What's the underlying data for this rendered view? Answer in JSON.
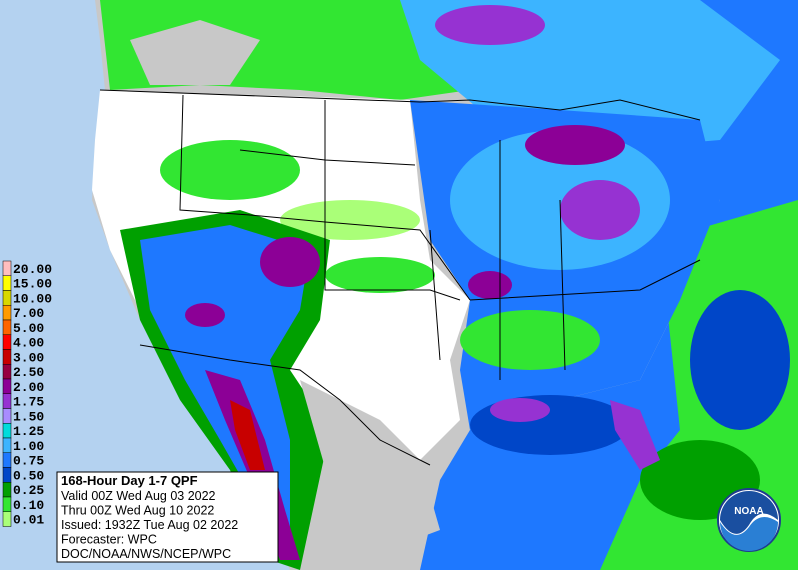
{
  "legend": {
    "items": [
      {
        "label": "20.00",
        "color": "#ffbebe"
      },
      {
        "label": "15.00",
        "color": "#ffff00"
      },
      {
        "label": "10.00",
        "color": "#d8d800"
      },
      {
        "label": "7.00",
        "color": "#ff9b00"
      },
      {
        "label": "5.00",
        "color": "#ff6400"
      },
      {
        "label": "4.00",
        "color": "#ff0000"
      },
      {
        "label": "3.00",
        "color": "#c80000"
      },
      {
        "label": "2.50",
        "color": "#960040"
      },
      {
        "label": "2.00",
        "color": "#8c0096"
      },
      {
        "label": "1.75",
        "color": "#9632d2"
      },
      {
        "label": "1.50",
        "color": "#a88cff"
      },
      {
        "label": "1.25",
        "color": "#00dcdc"
      },
      {
        "label": "1.00",
        "color": "#3cb4ff"
      },
      {
        "label": "0.75",
        "color": "#1e78ff"
      },
      {
        "label": "0.50",
        "color": "#0046c8"
      },
      {
        "label": "0.25",
        "color": "#00a000"
      },
      {
        "label": "0.10",
        "color": "#32e632"
      },
      {
        "label": "0.01",
        "color": "#aaff78"
      }
    ]
  },
  "info": {
    "title": "168-Hour Day 1-7 QPF",
    "lines": [
      "Valid 00Z Wed Aug 03 2022",
      "Thru 00Z Wed Aug 10 2022",
      "Issued: 1932Z Tue Aug 02 2022",
      "Forecaster: WPC",
      "DOC/NOAA/NWS/NCEP/WPC"
    ]
  },
  "logo": {
    "text": "NOAA"
  }
}
